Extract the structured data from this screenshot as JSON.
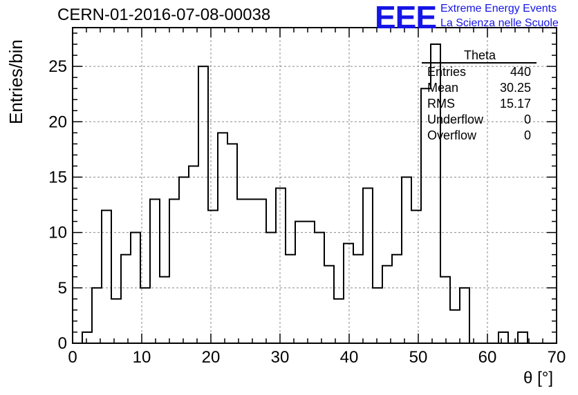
{
  "title": "CERN-01-2016-07-08-00038",
  "logo": {
    "mark": "EEE",
    "line1": "Extreme Energy Events",
    "line2": "La Scienza nelle Scuole",
    "color": "#1515e6"
  },
  "stats": {
    "title": "Theta",
    "rows": [
      {
        "label": "Entries",
        "value": "440"
      },
      {
        "label": "Mean",
        "value": "30.25"
      },
      {
        "label": "RMS",
        "value": "15.17"
      },
      {
        "label": "Underflow",
        "value": "0"
      },
      {
        "label": "Overflow",
        "value": "0"
      }
    ]
  },
  "chart_data": {
    "type": "bar",
    "title": "CERN-01-2016-07-08-00038",
    "xlabel": "θ [°]",
    "ylabel": "Entries/bin",
    "xlim": [
      0,
      70
    ],
    "ylim": [
      0,
      28.5
    ],
    "bin_width": 1.4,
    "x": [
      0.7,
      2.1,
      3.5,
      4.9,
      6.3,
      7.7,
      9.1,
      10.5,
      11.9,
      13.3,
      14.7,
      16.1,
      17.5,
      18.9,
      20.3,
      21.7,
      23.1,
      24.5,
      25.9,
      27.3,
      28.7,
      30.1,
      31.5,
      32.9,
      34.3,
      35.7,
      37.1,
      38.5,
      39.9,
      41.3,
      42.7,
      44.1,
      45.5,
      46.9,
      48.3,
      49.7,
      51.1,
      52.5,
      53.9,
      55.3,
      56.7,
      58.1,
      59.5,
      60.9,
      62.3,
      63.7,
      65.1,
      66.5,
      67.9,
      69.3
    ],
    "values": [
      0,
      1,
      5,
      12,
      4,
      8,
      10,
      5,
      13,
      6,
      13,
      15,
      16,
      25,
      12,
      19,
      18,
      13,
      13,
      13,
      10,
      14,
      8,
      11,
      11,
      10,
      7,
      4,
      9,
      8,
      14,
      5,
      7,
      8,
      15,
      12,
      23,
      27,
      6,
      3,
      5,
      0,
      0,
      0,
      1,
      0,
      1,
      0,
      0,
      0
    ],
    "xticks": [
      0,
      10,
      20,
      30,
      40,
      50,
      60,
      70
    ],
    "yticks": [
      0,
      5,
      10,
      15,
      20,
      25
    ],
    "grid": true,
    "line_color": "#000000"
  }
}
